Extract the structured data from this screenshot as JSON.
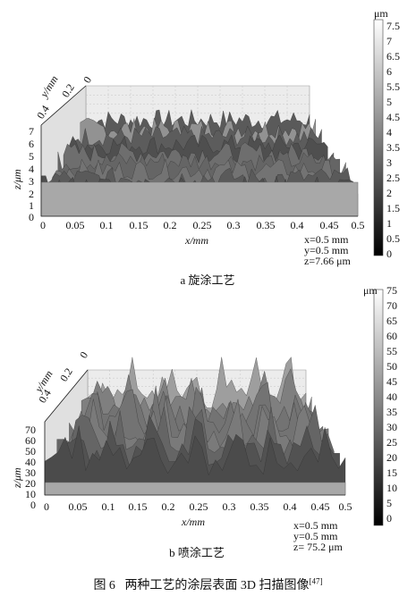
{
  "figure": {
    "caption_prefix": "图 6",
    "caption_text": "两种工艺的涂层表面 3D 扫描图像",
    "caption_ref": "[47]"
  },
  "panels": [
    {
      "id": "a",
      "sub_caption": "a  旋涂工艺",
      "x_axis_label": "x/mm",
      "y_axis_label": "y/mm",
      "z_axis_label": "z/μm",
      "x_ticks": [
        "0",
        "0.05",
        "0.1",
        "0.15",
        "0.2",
        "0.25",
        "0.3",
        "0.35",
        "0.4",
        "0.45",
        "0.5"
      ],
      "y_ticks": [
        "0.4",
        "0.2",
        "0"
      ],
      "z_ticks": [
        "7",
        "6",
        "5",
        "4",
        "3",
        "2",
        "1",
        "0"
      ],
      "colorbar_unit": "μm",
      "colorbar_ticks": [
        "7.5",
        "7",
        "6.5",
        "6",
        "5.5",
        "5",
        "4.5",
        "4",
        "3.5",
        "3",
        "2.5",
        "2",
        "1.5",
        "1",
        "0.5",
        "0"
      ],
      "info": [
        "x=0.5 mm",
        "y=0.5 mm",
        "z=7.66 μm"
      ],
      "surface_style": "fine, dense roughness peaks"
    },
    {
      "id": "b",
      "sub_caption": "b  喷涂工艺",
      "x_axis_label": "x/mm",
      "y_axis_label": "y/mm",
      "z_axis_label": "z/μm",
      "x_ticks": [
        "0",
        "0.05",
        "0.1",
        "0.15",
        "0.2",
        "0.25",
        "0.3",
        "0.35",
        "0.4",
        "0.45",
        "0.5"
      ],
      "y_ticks": [
        "0.4",
        "0.2",
        "0"
      ],
      "z_ticks": [
        "70",
        "60",
        "50",
        "40",
        "30",
        "20",
        "10",
        "0"
      ],
      "colorbar_unit": "μm",
      "colorbar_ticks": [
        "75",
        "70",
        "65",
        "60",
        "55",
        "50",
        "45",
        "40",
        "35",
        "30",
        "25",
        "20",
        "15",
        "10",
        "5",
        "0"
      ],
      "info": [
        "x=0.5 mm",
        "y=0.5 mm",
        "z= 75.2 μm"
      ],
      "surface_style": "coarse, tall block-like peaks"
    }
  ],
  "colors": {
    "surface_dark": "#3a3a3a",
    "surface_light": "#d8d8d8",
    "box_floor": "#a8a8a8",
    "colorbar_top": "#ffffff",
    "colorbar_bottom": "#000000"
  }
}
